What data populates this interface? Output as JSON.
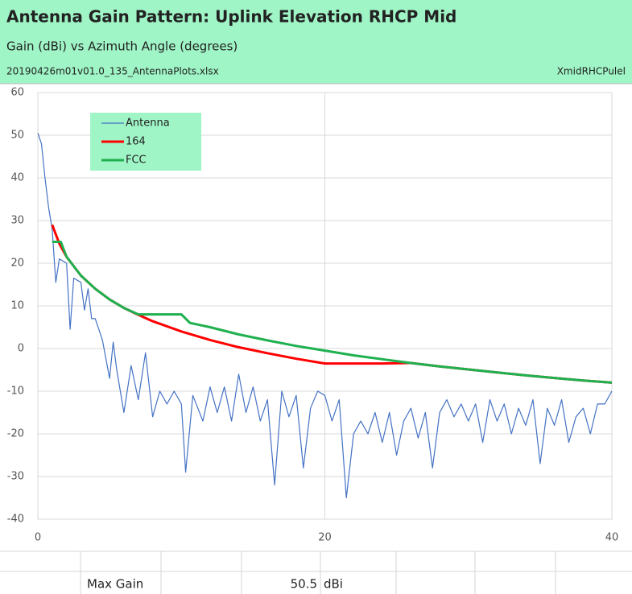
{
  "chart_data": {
    "type": "line",
    "title": "Antenna Gain Pattern: Uplink Elevation RHCP Mid",
    "subtitle": "Gain (dBi) vs Azimuth Angle (degrees)",
    "file_name": "20190426m01v01.0_135_AntennaPlots.xlsx",
    "sheet_name": "XmidRHCPulel",
    "xlim": [
      0,
      40
    ],
    "xticks": [
      0,
      20,
      40
    ],
    "ylim": [
      -40,
      60
    ],
    "yticks": [
      -40,
      -30,
      -20,
      -10,
      0,
      10,
      20,
      30,
      40,
      50,
      60
    ],
    "grid": true,
    "legend": "top-left",
    "series": [
      {
        "name": "Antenna",
        "color": "#4472c4",
        "x": [
          0,
          0.25,
          0.5,
          0.75,
          1,
          1.25,
          1.5,
          2,
          2.25,
          2.5,
          3,
          3.25,
          3.5,
          3.75,
          4,
          4.5,
          5,
          5.25,
          5.5,
          6,
          6.5,
          7,
          7.5,
          8,
          8.5,
          9,
          9.5,
          10,
          10.3,
          10.8,
          11.5,
          12,
          12.5,
          13,
          13.5,
          14,
          14.5,
          15,
          15.5,
          16,
          16.5,
          17,
          17.5,
          18,
          18.5,
          19,
          19.5,
          20,
          20.5,
          21,
          21.5,
          22,
          22.5,
          23,
          23.5,
          24,
          24.5,
          25,
          25.5,
          26,
          26.5,
          27,
          27.5,
          28,
          28.5,
          29,
          29.5,
          30,
          30.5,
          31,
          31.5,
          32,
          32.5,
          33,
          33.5,
          34,
          34.5,
          35,
          35.5,
          36,
          36.5,
          37,
          37.5,
          38,
          38.5,
          39,
          39.5,
          40
        ],
        "values": [
          50.5,
          48,
          40,
          33,
          28,
          15.5,
          21,
          20,
          4.5,
          16.5,
          15.5,
          9,
          14,
          7,
          7,
          2,
          -7,
          1.5,
          -5,
          -15,
          -4,
          -12,
          -1,
          -16,
          -10,
          -13,
          -10,
          -13,
          -29,
          -11,
          -17,
          -9,
          -15,
          -9,
          -17,
          -6,
          -15,
          -9,
          -17,
          -12,
          -32,
          -10,
          -16,
          -11,
          -28,
          -14,
          -10,
          -11,
          -17,
          -12,
          -35,
          -20,
          -17,
          -20,
          -15,
          -22,
          -15,
          -25,
          -17,
          -14,
          -21,
          -15,
          -28,
          -15,
          -12,
          -16,
          -13,
          -17,
          -13,
          -22,
          -12,
          -17,
          -13,
          -20,
          -14,
          -18,
          -12,
          -27,
          -14,
          -18,
          -12,
          -22,
          -16,
          -14,
          -20,
          -13,
          -13,
          -10
        ],
        "width": 1.2
      },
      {
        "name": "164",
        "color": "#ff0000",
        "x": [
          1,
          1.5,
          2,
          3,
          4,
          5,
          6,
          7,
          8,
          10,
          12,
          14,
          16,
          18,
          20,
          22,
          24,
          26,
          28,
          30,
          32,
          34,
          36,
          38,
          40
        ],
        "values": [
          29,
          24.6,
          21.5,
          17.1,
          14,
          11.5,
          9.5,
          7.9,
          6.4,
          4,
          2,
          0.3,
          -1.1,
          -2.4,
          -3.5,
          -3.5,
          -3.5,
          -3.4,
          -4.2,
          -4.9,
          -5.6,
          -6.3,
          -6.9,
          -7.5,
          -8
        ],
        "width": 3
      },
      {
        "name": "FCC",
        "color": "#1fb04f",
        "x": [
          1,
          1.6,
          2,
          3,
          4,
          5,
          6,
          7,
          8,
          9,
          10,
          10.6,
          12,
          14,
          16,
          18,
          20,
          22,
          24,
          26,
          28,
          30,
          32,
          34,
          36,
          38,
          40
        ],
        "values": [
          25,
          25,
          21.5,
          17.1,
          14,
          11.5,
          9.5,
          8,
          8,
          8,
          8,
          6,
          5,
          3.3,
          1.9,
          0.6,
          -0.5,
          -1.6,
          -2.5,
          -3.4,
          -4.2,
          -4.9,
          -5.6,
          -6.3,
          -6.9,
          -7.5,
          -8
        ],
        "width": 3
      }
    ]
  },
  "footer": {
    "label": "Max Gain",
    "value": 50.5,
    "unit": "dBi"
  }
}
